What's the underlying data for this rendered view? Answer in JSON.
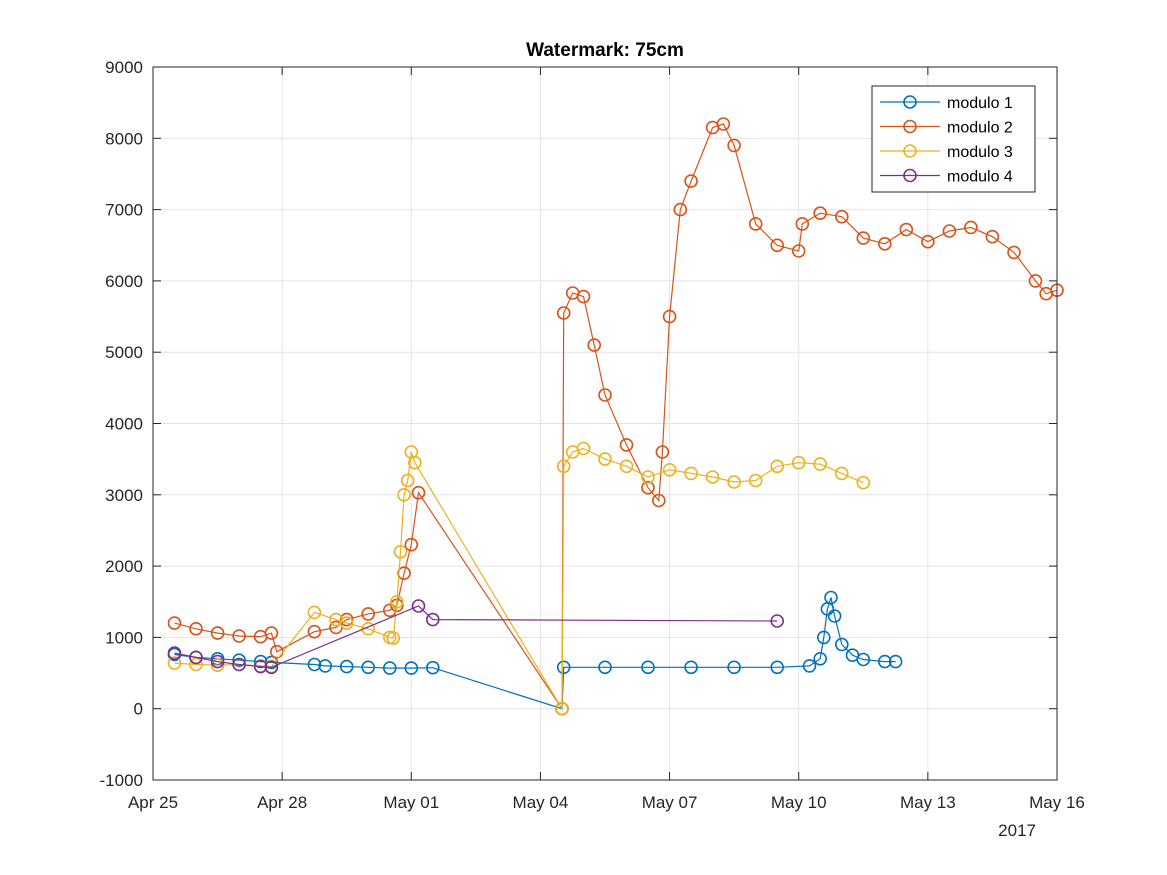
{
  "chart_data": {
    "type": "line",
    "title": "Watermark: 75cm",
    "xlabel": "",
    "ylabel": "",
    "x_axis_type": "date",
    "x_range": [
      "2017-04-25",
      "2017-05-16"
    ],
    "ylim": [
      -1000,
      9000
    ],
    "x_ticks": [
      {
        "date": "2017-04-25",
        "label": "Apr 25"
      },
      {
        "date": "2017-04-28",
        "label": "Apr 28"
      },
      {
        "date": "2017-05-01",
        "label": "May 01"
      },
      {
        "date": "2017-05-04",
        "label": "May 04"
      },
      {
        "date": "2017-05-07",
        "label": "May 07"
      },
      {
        "date": "2017-05-10",
        "label": "May 10"
      },
      {
        "date": "2017-05-13",
        "label": "May 13"
      },
      {
        "date": "2017-05-16",
        "label": "May 16"
      }
    ],
    "x_year_label": "2017",
    "y_ticks": [
      -1000,
      0,
      1000,
      2000,
      3000,
      4000,
      5000,
      6000,
      7000,
      8000,
      9000
    ],
    "grid": true,
    "legend_position": "top-right",
    "marker": "circle",
    "series": [
      {
        "name": "modulo 1",
        "color": "#0072BD",
        "points": [
          [
            "2017-04-25 12:00",
            760
          ],
          [
            "2017-04-26 00:00",
            720
          ],
          [
            "2017-04-26 12:00",
            700
          ],
          [
            "2017-04-27 00:00",
            680
          ],
          [
            "2017-04-27 12:00",
            660
          ],
          [
            "2017-04-27 18:00",
            650
          ],
          [
            "2017-04-28 18:00",
            620
          ],
          [
            "2017-04-29 00:00",
            600
          ],
          [
            "2017-04-29 12:00",
            590
          ],
          [
            "2017-04-30 00:00",
            580
          ],
          [
            "2017-04-30 12:00",
            570
          ],
          [
            "2017-05-01 00:00",
            570
          ],
          [
            "2017-05-01 12:00",
            575
          ],
          [
            "2017-05-04 12:00",
            0
          ],
          [
            "2017-05-04 13:00",
            580
          ],
          [
            "2017-05-05 12:00",
            580
          ],
          [
            "2017-05-06 12:00",
            580
          ],
          [
            "2017-05-07 12:00",
            580
          ],
          [
            "2017-05-08 12:00",
            580
          ],
          [
            "2017-05-09 12:00",
            580
          ],
          [
            "2017-05-10 06:00",
            600
          ],
          [
            "2017-05-10 12:00",
            700
          ],
          [
            "2017-05-10 14:00",
            1000
          ],
          [
            "2017-05-10 16:00",
            1400
          ],
          [
            "2017-05-10 18:00",
            1560
          ],
          [
            "2017-05-10 20:00",
            1300
          ],
          [
            "2017-05-11 00:00",
            900
          ],
          [
            "2017-05-11 06:00",
            750
          ],
          [
            "2017-05-11 12:00",
            690
          ],
          [
            "2017-05-12 00:00",
            660
          ],
          [
            "2017-05-12 06:00",
            660
          ]
        ]
      },
      {
        "name": "modulo 2",
        "color": "#D95319",
        "points": [
          [
            "2017-04-25 12:00",
            1200
          ],
          [
            "2017-04-26 00:00",
            1120
          ],
          [
            "2017-04-26 12:00",
            1060
          ],
          [
            "2017-04-27 00:00",
            1020
          ],
          [
            "2017-04-27 12:00",
            1010
          ],
          [
            "2017-04-27 18:00",
            1060
          ],
          [
            "2017-04-27 21:00",
            800
          ],
          [
            "2017-04-28 18:00",
            1080
          ],
          [
            "2017-04-29 06:00",
            1140
          ],
          [
            "2017-04-29 12:00",
            1250
          ],
          [
            "2017-04-30 00:00",
            1330
          ],
          [
            "2017-04-30 12:00",
            1380
          ],
          [
            "2017-04-30 16:00",
            1450
          ],
          [
            "2017-04-30 20:00",
            1900
          ],
          [
            "2017-05-01 00:00",
            2300
          ],
          [
            "2017-05-01 04:00",
            3030
          ],
          [
            "2017-05-04 12:00",
            0
          ],
          [
            "2017-05-04 13:00",
            5550
          ],
          [
            "2017-05-04 18:00",
            5830
          ],
          [
            "2017-05-05 00:00",
            5780
          ],
          [
            "2017-05-05 06:00",
            5100
          ],
          [
            "2017-05-05 12:00",
            4400
          ],
          [
            "2017-05-06 00:00",
            3700
          ],
          [
            "2017-05-06 12:00",
            3100
          ],
          [
            "2017-05-06 18:00",
            2920
          ],
          [
            "2017-05-06 20:00",
            3600
          ],
          [
            "2017-05-07 00:00",
            5500
          ],
          [
            "2017-05-07 06:00",
            7000
          ],
          [
            "2017-05-07 12:00",
            7400
          ],
          [
            "2017-05-08 00:00",
            8150
          ],
          [
            "2017-05-08 06:00",
            8200
          ],
          [
            "2017-05-08 12:00",
            7900
          ],
          [
            "2017-05-09 00:00",
            6800
          ],
          [
            "2017-05-09 12:00",
            6500
          ],
          [
            "2017-05-10 00:00",
            6420
          ],
          [
            "2017-05-10 02:00",
            6800
          ],
          [
            "2017-05-10 12:00",
            6950
          ],
          [
            "2017-05-11 00:00",
            6900
          ],
          [
            "2017-05-11 12:00",
            6600
          ],
          [
            "2017-05-12 00:00",
            6520
          ],
          [
            "2017-05-12 12:00",
            6720
          ],
          [
            "2017-05-13 00:00",
            6550
          ],
          [
            "2017-05-13 12:00",
            6700
          ],
          [
            "2017-05-14 00:00",
            6750
          ],
          [
            "2017-05-14 12:00",
            6620
          ],
          [
            "2017-05-15 00:00",
            6400
          ],
          [
            "2017-05-15 12:00",
            6000
          ],
          [
            "2017-05-15 18:00",
            5820
          ],
          [
            "2017-05-16 00:00",
            5870
          ]
        ]
      },
      {
        "name": "modulo 3",
        "color": "#EDB120",
        "points": [
          [
            "2017-04-25 12:00",
            640
          ],
          [
            "2017-04-26 00:00",
            620
          ],
          [
            "2017-04-26 12:00",
            610
          ],
          [
            "2017-04-27 00:00",
            620
          ],
          [
            "2017-04-27 12:00",
            600
          ],
          [
            "2017-04-27 18:00",
            590
          ],
          [
            "2017-04-28 18:00",
            1350
          ],
          [
            "2017-04-29 06:00",
            1250
          ],
          [
            "2017-04-29 12:00",
            1200
          ],
          [
            "2017-04-30 00:00",
            1120
          ],
          [
            "2017-04-30 12:00",
            1000
          ],
          [
            "2017-04-30 14:00",
            990
          ],
          [
            "2017-04-30 16:00",
            1500
          ],
          [
            "2017-04-30 18:00",
            2200
          ],
          [
            "2017-04-30 20:00",
            3000
          ],
          [
            "2017-04-30 22:00",
            3200
          ],
          [
            "2017-05-01 00:00",
            3600
          ],
          [
            "2017-05-01 02:00",
            3450
          ],
          [
            "2017-05-04 12:00",
            0
          ],
          [
            "2017-05-04 13:00",
            3400
          ],
          [
            "2017-05-04 18:00",
            3600
          ],
          [
            "2017-05-05 00:00",
            3650
          ],
          [
            "2017-05-05 12:00",
            3500
          ],
          [
            "2017-05-06 00:00",
            3400
          ],
          [
            "2017-05-06 12:00",
            3250
          ],
          [
            "2017-05-07 00:00",
            3350
          ],
          [
            "2017-05-07 12:00",
            3300
          ],
          [
            "2017-05-08 00:00",
            3250
          ],
          [
            "2017-05-08 12:00",
            3180
          ],
          [
            "2017-05-09 00:00",
            3200
          ],
          [
            "2017-05-09 12:00",
            3400
          ],
          [
            "2017-05-10 00:00",
            3450
          ],
          [
            "2017-05-10 12:00",
            3430
          ],
          [
            "2017-05-11 00:00",
            3300
          ],
          [
            "2017-05-11 12:00",
            3170
          ]
        ]
      },
      {
        "name": "modulo 4",
        "color": "#7E2F8E",
        "points": [
          [
            "2017-04-25 12:00",
            780
          ],
          [
            "2017-04-26 00:00",
            720
          ],
          [
            "2017-04-26 12:00",
            660
          ],
          [
            "2017-04-27 00:00",
            620
          ],
          [
            "2017-04-27 12:00",
            590
          ],
          [
            "2017-04-27 18:00",
            580
          ],
          [
            "2017-05-01 04:00",
            1440
          ],
          [
            "2017-05-01 12:00",
            1250
          ],
          [
            "2017-05-09 12:00",
            1230
          ]
        ]
      }
    ]
  }
}
